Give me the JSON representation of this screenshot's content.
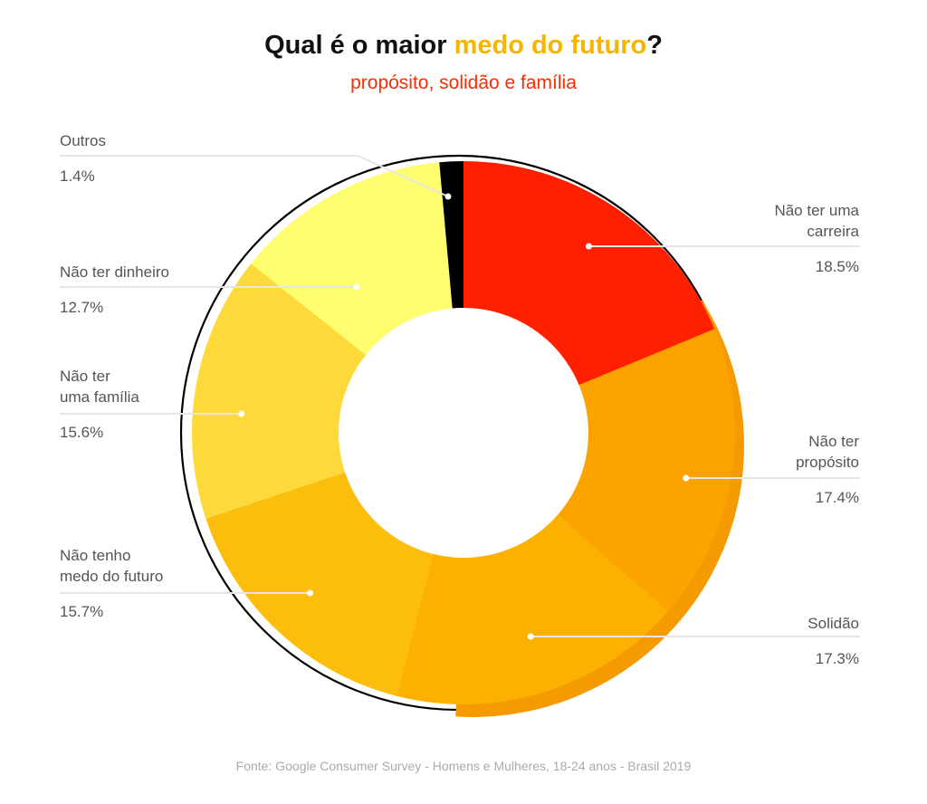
{
  "header": {
    "title_start": "Qual é o maior ",
    "title_highlight": "medo do futuro",
    "title_end": "?",
    "subtitle": "propósito, solidão e família"
  },
  "chart_data": {
    "type": "pie",
    "subtype": "donut",
    "slices": [
      {
        "label": "Não ter uma carreira",
        "value": 18.5,
        "value_label": "18.5%",
        "color": "#ff2000"
      },
      {
        "label": "Não ter propósito",
        "value": 17.4,
        "value_label": "17.4%",
        "color": "#fca300"
      },
      {
        "label": "Solidão",
        "value": 17.3,
        "value_label": "17.3%",
        "color": "#fcb000"
      },
      {
        "label": "Não tenho medo do futuro",
        "value": 15.7,
        "value_label": "15.7%",
        "color": "#fdbd0c"
      },
      {
        "label": "Não ter uma família",
        "value": 15.6,
        "value_label": "15.6%",
        "color": "#fed93a"
      },
      {
        "label": "Não ter dinheiro",
        "value": 12.7,
        "value_label": "12.7%",
        "color": "#fefe6e"
      },
      {
        "label": "Outros",
        "value": 1.4,
        "value_label": "1.4%",
        "color": "#000000"
      }
    ]
  },
  "labels": {
    "carreira_name": "Não ter uma\ncarreira",
    "carreira_pct": "18.5%",
    "proposito_name": "Não ter\npropósito",
    "proposito_pct": "17.4%",
    "solidao_name": "Solidão",
    "solidao_pct": "17.3%",
    "medo_name": "Não tenho\nmedo do futuro",
    "medo_pct": "15.7%",
    "familia_name": "Não ter\numa família",
    "familia_pct": "15.6%",
    "dinheiro_name": "Não ter dinheiro",
    "dinheiro_pct": "12.7%",
    "outros_name": "Outros",
    "outros_pct": "1.4%"
  },
  "footer": {
    "source": "Fonte: Google Consumer Survey - Homens e Mulheres, 18-24 anos - Brasil 2019"
  }
}
